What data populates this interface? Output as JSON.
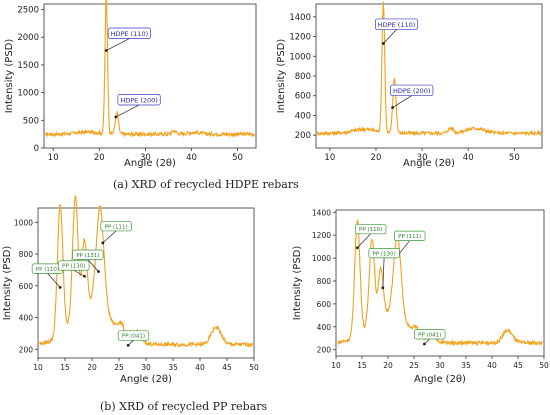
{
  "captions": {
    "a": "(a)  XRD of recycled HDPE rebars",
    "b": "(b)  XRD of recycled PP rebars"
  },
  "colors": {
    "line": "#f5a01a",
    "hdpe_label_border": "#3a3acc",
    "hdpe_label_text": "#2a2ab0",
    "pp_label_border": "#3a9a3a",
    "pp_label_text": "#2e7d2e",
    "arrow": "#222222"
  },
  "chart_data": [
    {
      "id": "hdpe_left",
      "type": "line",
      "title": "",
      "xlabel": "Angle (2θ)",
      "ylabel": "Intensity (PSD)",
      "xlim": [
        8,
        54
      ],
      "ylim": [
        0,
        2600
      ],
      "xticks": [
        10,
        20,
        30,
        40,
        50
      ],
      "yticks": [
        0,
        500,
        1000,
        1500,
        2000,
        2500
      ],
      "background": 250,
      "peaks": [
        {
          "x": 21.5,
          "y": 2460,
          "w": 0.28
        },
        {
          "x": 23.8,
          "y": 380,
          "w": 0.35
        },
        {
          "x": 17.5,
          "y": 40,
          "w": 2.5
        },
        {
          "x": 36.2,
          "y": 60,
          "w": 0.5
        },
        {
          "x": 40.5,
          "y": 30,
          "w": 1.5
        }
      ],
      "annotations": [
        {
          "label": "HDPE (110)",
          "x": 21.5,
          "y": 1760
        },
        {
          "label": "HDPE (200)",
          "x": 23.6,
          "y": 560
        }
      ]
    },
    {
      "id": "hdpe_right",
      "type": "line",
      "title": "",
      "xlabel": "Angle (2θ)",
      "ylabel": "Intensity (PSD)",
      "xlim": [
        7,
        56
      ],
      "ylim": [
        70,
        1530
      ],
      "xticks": [
        10,
        20,
        30,
        40,
        50
      ],
      "yticks": [
        200,
        400,
        600,
        800,
        1000,
        1200,
        1400
      ],
      "background": 220,
      "peaks": [
        {
          "x": 21.6,
          "y": 1320,
          "w": 0.3
        },
        {
          "x": 24.0,
          "y": 560,
          "w": 0.35
        },
        {
          "x": 17.5,
          "y": 40,
          "w": 2.5
        },
        {
          "x": 36.2,
          "y": 50,
          "w": 0.6
        },
        {
          "x": 41.5,
          "y": 50,
          "w": 2.0
        }
      ],
      "annotations": [
        {
          "label": "HDPE (110)",
          "x": 21.6,
          "y": 1130
        },
        {
          "label": "HDPE (200)",
          "x": 23.6,
          "y": 480
        }
      ]
    },
    {
      "id": "pp_left",
      "type": "line",
      "title": "",
      "xlabel": "Angle (2θ)",
      "ylabel": "Intensity (PSD)",
      "xlim": [
        10,
        50
      ],
      "ylim": [
        145,
        1090
      ],
      "xticks": [
        10,
        15,
        20,
        25,
        30,
        35,
        40,
        45,
        50
      ],
      "yticks": [
        200,
        400,
        600,
        800,
        1000
      ],
      "background": 230,
      "peaks": [
        {
          "x": 14.1,
          "y": 820,
          "w": 0.5
        },
        {
          "x": 16.9,
          "y": 760,
          "w": 0.5
        },
        {
          "x": 18.6,
          "y": 430,
          "w": 0.45
        },
        {
          "x": 21.5,
          "y": 640,
          "w": 0.7
        },
        {
          "x": 25.4,
          "y": 60,
          "w": 0.6
        },
        {
          "x": 28.5,
          "y": 70,
          "w": 0.7
        },
        {
          "x": 43.0,
          "y": 110,
          "w": 0.9
        },
        {
          "x": 20.0,
          "y": 250,
          "w": 3.5
        }
      ],
      "annotations": [
        {
          "label": "PP (110)",
          "x": 14.1,
          "y": 590
        },
        {
          "label": "PP (111)",
          "x": 22.0,
          "y": 870
        },
        {
          "label": "PP (131)",
          "x": 21.2,
          "y": 690
        },
        {
          "label": "PP (130)",
          "x": 18.6,
          "y": 660
        },
        {
          "label": "PP (041)",
          "x": 26.7,
          "y": 225
        }
      ]
    },
    {
      "id": "pp_right",
      "type": "line",
      "title": "",
      "xlabel": "Angle (2θ)",
      "ylabel": "Intensity (PSD)",
      "xlim": [
        10,
        50
      ],
      "ylim": [
        145,
        1420
      ],
      "xticks": [
        10,
        15,
        20,
        25,
        30,
        35,
        40,
        45,
        50
      ],
      "yticks": [
        200,
        400,
        600,
        800,
        1000,
        1200,
        1400
      ],
      "background": 260,
      "peaks": [
        {
          "x": 14.1,
          "y": 1010,
          "w": 0.5
        },
        {
          "x": 16.9,
          "y": 740,
          "w": 0.5
        },
        {
          "x": 18.6,
          "y": 420,
          "w": 0.45
        },
        {
          "x": 21.8,
          "y": 710,
          "w": 0.7
        },
        {
          "x": 25.4,
          "y": 60,
          "w": 0.6
        },
        {
          "x": 28.5,
          "y": 60,
          "w": 0.7
        },
        {
          "x": 43.0,
          "y": 110,
          "w": 0.9
        },
        {
          "x": 20.0,
          "y": 260,
          "w": 3.5
        }
      ],
      "annotations": [
        {
          "label": "PP (110)",
          "x": 14.1,
          "y": 1090
        },
        {
          "label": "PP (111)",
          "x": 22.0,
          "y": 1030
        },
        {
          "label": "PP (130)",
          "x": 19.0,
          "y": 740
        },
        {
          "label": "PP (041)",
          "x": 27.0,
          "y": 250
        }
      ]
    }
  ]
}
